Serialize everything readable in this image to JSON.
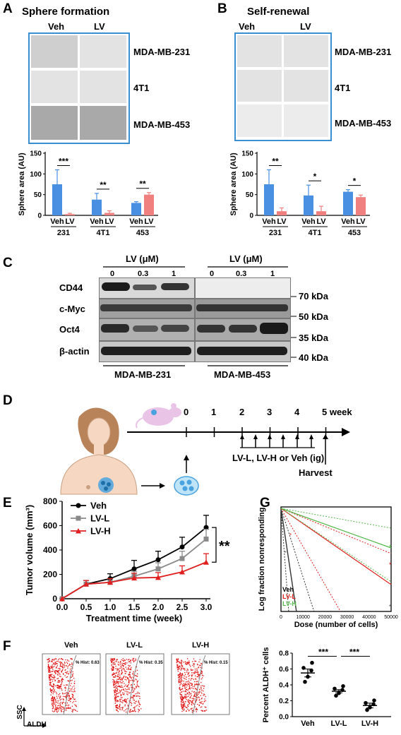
{
  "panels": {
    "A": {
      "letter": "A",
      "title": "Sphere formation",
      "col_veh": "Veh",
      "col_lv": "LV",
      "rows": [
        "MDA-MB-231",
        "4T1",
        "MDA-MB-453"
      ]
    },
    "B": {
      "letter": "B",
      "title": "Self-renewal",
      "col_veh": "Veh",
      "col_lv": "LV",
      "rows": [
        "MDA-MB-231",
        "4T1",
        "MDA-MB-453"
      ]
    },
    "C": {
      "letter": "C",
      "lv_header": "LV (μM)",
      "doses": [
        "0",
        "0.3",
        "1"
      ],
      "proteins": [
        "CD44",
        "c-Myc",
        "Oct4",
        "β-actin"
      ],
      "markers": [
        "70 kDa",
        "50 kDa",
        "35 kDa",
        "40 kDa"
      ],
      "cell_lines": [
        "MDA-MB-231",
        "MDA-MB-453"
      ]
    },
    "D": {
      "letter": "D",
      "timeline": [
        "0",
        "1",
        "2",
        "3",
        "4",
        "5 week"
      ],
      "treatment": "LV-L, LV-H or Veh (ig)",
      "harvest": "Harvest"
    },
    "E": {
      "letter": "E"
    },
    "F": {
      "letter": "F",
      "flow_titles": [
        "Veh",
        "LV-L",
        "LV-H"
      ],
      "hist": [
        "% Hist: 0.63",
        "% Hist: 0.35",
        "% Hist: 0.15"
      ],
      "ssc": "SSC",
      "aldh": "ALDH"
    },
    "G": {
      "letter": "G"
    }
  },
  "colors": {
    "veh_bar": "#4a90e2",
    "lv_bar": "#f08080",
    "lv_h": "#e02020",
    "lv_l": "#8a8a8a",
    "frame": "#3a8fd0"
  },
  "chart_data": [
    {
      "id": "A-bar",
      "type": "bar",
      "ylabel": "Sphere area (AU)",
      "ylim": [
        0,
        150
      ],
      "yticks": [
        "0",
        "50",
        "100",
        "150"
      ],
      "groups": [
        "231",
        "4T1",
        "453"
      ],
      "sub_labels": [
        "Veh",
        "LV"
      ],
      "series": [
        {
          "name": "Veh",
          "values": [
            75,
            38,
            30
          ]
        },
        {
          "name": "LV",
          "values": [
            3,
            6,
            50
          ]
        }
      ],
      "errors": [
        {
          "values": [
            35,
            15,
            3
          ]
        },
        {
          "values": [
            2,
            5,
            5
          ]
        }
      ],
      "significance": [
        "***",
        "**",
        "**"
      ]
    },
    {
      "id": "B-bar",
      "type": "bar",
      "ylabel": "Sphere area (AU)",
      "ylim": [
        0,
        150
      ],
      "yticks": [
        "0",
        "50",
        "100",
        "150"
      ],
      "groups": [
        "231",
        "4T1",
        "453"
      ],
      "sub_labels": [
        "Veh",
        "LV"
      ],
      "series": [
        {
          "name": "Veh",
          "values": [
            75,
            48,
            57
          ]
        },
        {
          "name": "LV",
          "values": [
            10,
            10,
            44
          ]
        }
      ],
      "errors": [
        {
          "values": [
            35,
            25,
            5
          ]
        },
        {
          "values": [
            8,
            12,
            5
          ]
        }
      ],
      "significance": [
        "**",
        "*",
        "*"
      ]
    },
    {
      "id": "E-line",
      "type": "line",
      "xlabel": "Treatment time (week)",
      "ylabel": "Tumor volume (mm³)",
      "x": [
        0.0,
        0.5,
        1.0,
        1.5,
        2.0,
        2.5,
        3.0
      ],
      "xticks": [
        "0.0",
        "0.5",
        "1.0",
        "1.5",
        "2.0",
        "2.5",
        "3.0"
      ],
      "ylim": [
        0,
        800
      ],
      "yticks": [
        "0",
        "200",
        "400",
        "600",
        "800"
      ],
      "series": [
        {
          "name": "Veh",
          "values": [
            0,
            120,
            165,
            245,
            320,
            425,
            585
          ],
          "err": [
            0,
            30,
            40,
            70,
            70,
            80,
            100
          ]
        },
        {
          "name": "LV-L",
          "values": [
            0,
            120,
            135,
            185,
            245,
            330,
            490
          ],
          "err": [
            0,
            30,
            30,
            40,
            50,
            60,
            80
          ]
        },
        {
          "name": "LV-H",
          "values": [
            0,
            120,
            135,
            170,
            175,
            220,
            300
          ],
          "err": [
            0,
            30,
            30,
            40,
            40,
            50,
            70
          ]
        }
      ],
      "significance": "**"
    },
    {
      "id": "G-elda",
      "type": "line",
      "xlabel": "Dose (number of cells)",
      "ylabel": "Log fraction nonresponding",
      "xticks": [
        "0",
        "10000",
        "20000",
        "30000",
        "40000",
        "50000"
      ],
      "series": [
        {
          "name": "Veh"
        },
        {
          "name": "LV-L"
        },
        {
          "name": "LV-H"
        }
      ]
    },
    {
      "id": "F-scatter",
      "type": "scatter",
      "ylabel": "Percent ALDH⁺ cells",
      "categories": [
        "Veh",
        "LV-L",
        "LV-H"
      ],
      "ylim": [
        0,
        0.8
      ],
      "yticks": [
        "0.0",
        "0.2",
        "0.4",
        "0.6",
        "0.8"
      ],
      "means": [
        0.55,
        0.32,
        0.14
      ],
      "sems": [
        0.05,
        0.02,
        0.03
      ],
      "significance": [
        "***",
        "***"
      ]
    }
  ]
}
